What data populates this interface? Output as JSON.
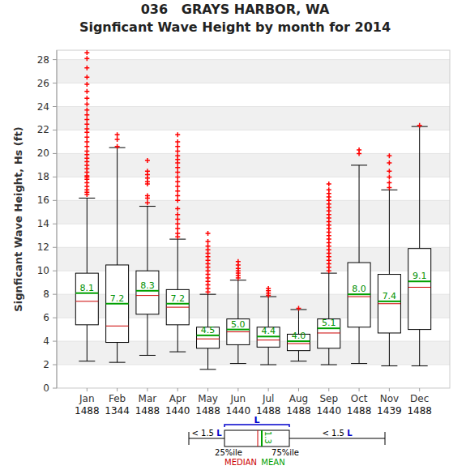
{
  "chart_data": {
    "type": "box",
    "title": "036   GRAYS HARBOR, WA",
    "subtitle": "Signficant Wave Height by month for 2014",
    "y_label": "Signficant Wave Height, Hs (ft)",
    "categories": [
      "Jan",
      "Feb",
      "Mar",
      "Apr",
      "May",
      "Jun",
      "Jul",
      "Aug",
      "Sep",
      "Oct",
      "Nov",
      "Dec"
    ],
    "counts": [
      1488,
      1344,
      1488,
      1440,
      1488,
      1440,
      1488,
      1488,
      1440,
      1488,
      1439,
      1488
    ],
    "whisker_low": [
      2.3,
      2.2,
      2.8,
      3.1,
      1.6,
      2.1,
      2.0,
      2.3,
      2.0,
      2.1,
      1.9,
      1.9
    ],
    "q1": [
      5.4,
      3.9,
      6.3,
      5.4,
      3.4,
      3.7,
      3.5,
      3.2,
      3.4,
      5.2,
      4.7,
      5.0
    ],
    "median": [
      7.4,
      5.3,
      7.9,
      6.9,
      4.2,
      4.8,
      4.1,
      3.8,
      4.7,
      7.8,
      7.2,
      8.6
    ],
    "q3": [
      9.8,
      10.5,
      10.0,
      8.4,
      5.2,
      5.9,
      5.2,
      4.6,
      5.9,
      10.7,
      9.7,
      11.9
    ],
    "whisker_high": [
      16.2,
      20.5,
      15.5,
      12.7,
      8.0,
      9.2,
      7.8,
      6.7,
      9.8,
      19.0,
      16.9,
      22.3
    ],
    "mean": [
      8.1,
      7.2,
      8.3,
      7.2,
      4.5,
      5.0,
      4.4,
      4.0,
      5.1,
      8.0,
      7.4,
      9.1
    ],
    "mean_labels": [
      "8.1",
      "7.2",
      "8.3",
      "7.2",
      "4.5",
      "5.0",
      "4.4",
      "4.0",
      "5.1",
      "8.0",
      "7.4",
      "9.1"
    ],
    "data_labels": true,
    "outliers": [
      [
        16.5,
        16.7,
        16.9,
        17.2,
        17.5,
        17.8,
        18.0,
        18.1,
        18.4,
        18.7,
        19.0,
        19.3,
        19.6,
        19.9,
        20.2,
        20.6,
        21.0,
        21.4,
        21.8,
        22.1,
        22.5,
        22.9,
        23.3,
        23.7,
        24.2,
        24.7,
        25.3,
        25.9,
        26.5,
        27.3,
        28.1,
        28.6
      ],
      [
        20.6,
        21.2,
        21.6
      ],
      [
        15.8,
        16.2,
        16.4,
        17.4,
        17.6,
        17.9,
        18.2,
        18.5,
        19.4
      ],
      [
        12.9,
        13.2,
        13.6,
        14.0,
        14.4,
        14.8,
        15.3,
        16.0,
        16.4,
        16.8,
        17.2,
        17.6,
        18.0,
        18.4,
        18.8,
        19.2,
        19.5,
        19.8,
        20.2,
        20.6,
        21.0,
        21.6
      ],
      [
        8.2,
        8.5,
        8.8,
        9.1,
        9.4,
        9.7,
        10.0,
        10.3,
        10.6,
        10.9,
        11.2,
        11.5,
        11.8,
        12.1,
        12.5,
        13.2
      ],
      [
        9.4,
        9.6,
        9.8,
        10.0,
        10.2,
        10.5,
        10.8
      ],
      [
        7.9,
        8.1,
        8.3,
        8.5
      ],
      [
        6.8
      ],
      [
        10.0,
        10.3,
        10.6,
        10.9,
        11.2,
        11.5,
        11.8,
        12.1,
        12.4,
        12.7,
        13.0,
        13.3,
        13.6,
        13.9,
        14.2,
        14.5,
        14.8,
        15.1,
        15.4,
        15.7,
        16.0,
        16.3,
        16.6,
        16.9,
        17.4
      ],
      [
        20.0,
        20.3
      ],
      [
        17.1,
        17.5,
        18.0,
        18.5,
        19.2,
        19.8
      ],
      [
        22.4
      ]
    ],
    "ylim": [
      0,
      28.8
    ],
    "yticks": [
      0,
      2,
      4,
      6,
      8,
      10,
      12,
      14,
      16,
      18,
      20,
      22,
      24,
      26,
      28
    ],
    "grid": true,
    "key": {
      "whisker_text": "< 1.5",
      "iqr_text": "L",
      "q1_text": "25%ile",
      "q3_text": "75%ile",
      "median_text": "MEDIAN",
      "mean_text": "MEAN",
      "example_value": 1.3
    }
  }
}
